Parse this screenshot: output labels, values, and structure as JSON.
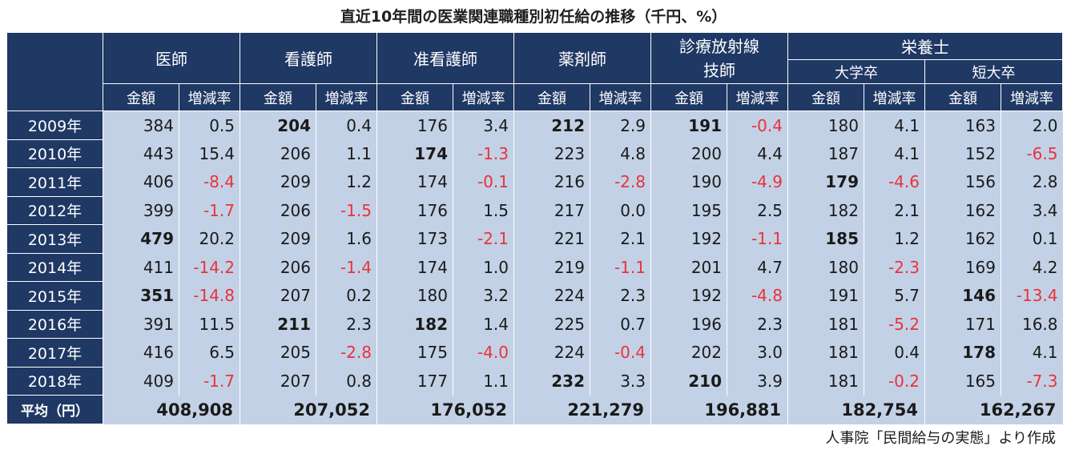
{
  "title": "直近10年間の医業関連職種別初任給の推移（千円、%）",
  "source": "人事院「民間給与の実態」より作成",
  "groups": {
    "doctor": "医師",
    "nurse": "看護師",
    "assoc_nurse": "准看護師",
    "pharmacist": "薬剤師",
    "radiology": "診療放射線技師",
    "dietitian": "栄養士",
    "dietitian_univ": "大学卒",
    "dietitian_jc": "短大卒"
  },
  "radiology_line1": "診療放射線",
  "radiology_line2": "技師",
  "sub_amount": "金額",
  "sub_rate": "増減率",
  "avg_label": "平均（円）",
  "colors": {
    "header_bg": "#1f3864",
    "cell_bg": "#c3d1e6",
    "negative": "#e8333a"
  },
  "chart_data": {
    "type": "table",
    "title": "直近10年間の医業関連職種別初任給の推移（千円、%）",
    "columns": [
      "医師",
      "看護師",
      "准看護師",
      "薬剤師",
      "診療放射線技師",
      "栄養士 大学卒",
      "栄養士 短大卒"
    ],
    "rows": [
      {
        "year": "2009年",
        "cells": [
          [
            "384",
            "0.5"
          ],
          [
            "204",
            "0.4"
          ],
          [
            "176",
            "3.4"
          ],
          [
            "212",
            "2.9"
          ],
          [
            "191",
            "-0.4"
          ],
          [
            "180",
            "4.1"
          ],
          [
            "163",
            "2.0"
          ]
        ],
        "bold": [
          false,
          true,
          false,
          true,
          true,
          false,
          false
        ]
      },
      {
        "year": "2010年",
        "cells": [
          [
            "443",
            "15.4"
          ],
          [
            "206",
            "1.1"
          ],
          [
            "174",
            "-1.3"
          ],
          [
            "223",
            "4.8"
          ],
          [
            "200",
            "4.4"
          ],
          [
            "187",
            "4.1"
          ],
          [
            "152",
            "-6.5"
          ]
        ],
        "bold": [
          false,
          false,
          true,
          false,
          false,
          false,
          false
        ]
      },
      {
        "year": "2011年",
        "cells": [
          [
            "406",
            "-8.4"
          ],
          [
            "209",
            "1.2"
          ],
          [
            "174",
            "-0.1"
          ],
          [
            "216",
            "-2.8"
          ],
          [
            "190",
            "-4.9"
          ],
          [
            "179",
            "-4.6"
          ],
          [
            "156",
            "2.8"
          ]
        ],
        "bold": [
          false,
          false,
          false,
          false,
          false,
          true,
          false
        ]
      },
      {
        "year": "2012年",
        "cells": [
          [
            "399",
            "-1.7"
          ],
          [
            "206",
            "-1.5"
          ],
          [
            "176",
            "1.5"
          ],
          [
            "217",
            "0.0"
          ],
          [
            "195",
            "2.5"
          ],
          [
            "182",
            "2.1"
          ],
          [
            "162",
            "3.4"
          ]
        ],
        "bold": [
          false,
          false,
          false,
          false,
          false,
          false,
          false
        ]
      },
      {
        "year": "2013年",
        "cells": [
          [
            "479",
            "20.2"
          ],
          [
            "209",
            "1.6"
          ],
          [
            "173",
            "-2.1"
          ],
          [
            "221",
            "2.1"
          ],
          [
            "192",
            "-1.1"
          ],
          [
            "185",
            "1.2"
          ],
          [
            "162",
            "0.1"
          ]
        ],
        "bold": [
          true,
          false,
          false,
          false,
          false,
          true,
          false
        ]
      },
      {
        "year": "2014年",
        "cells": [
          [
            "411",
            "-14.2"
          ],
          [
            "206",
            "-1.4"
          ],
          [
            "174",
            "1.0"
          ],
          [
            "219",
            "-1.1"
          ],
          [
            "201",
            "4.7"
          ],
          [
            "180",
            "-2.3"
          ],
          [
            "169",
            "4.2"
          ]
        ],
        "bold": [
          false,
          false,
          false,
          false,
          false,
          false,
          false
        ]
      },
      {
        "year": "2015年",
        "cells": [
          [
            "351",
            "-14.8"
          ],
          [
            "207",
            "0.2"
          ],
          [
            "180",
            "3.2"
          ],
          [
            "224",
            "2.3"
          ],
          [
            "192",
            "-4.8"
          ],
          [
            "191",
            "5.7"
          ],
          [
            "146",
            "-13.4"
          ]
        ],
        "bold": [
          true,
          false,
          false,
          false,
          false,
          false,
          true
        ]
      },
      {
        "year": "2016年",
        "cells": [
          [
            "391",
            "11.5"
          ],
          [
            "211",
            "2.3"
          ],
          [
            "182",
            "1.4"
          ],
          [
            "225",
            "0.7"
          ],
          [
            "196",
            "2.3"
          ],
          [
            "181",
            "-5.2"
          ],
          [
            "171",
            "16.8"
          ]
        ],
        "bold": [
          false,
          true,
          true,
          false,
          false,
          false,
          false
        ]
      },
      {
        "year": "2017年",
        "cells": [
          [
            "416",
            "6.5"
          ],
          [
            "205",
            "-2.8"
          ],
          [
            "175",
            "-4.0"
          ],
          [
            "224",
            "-0.4"
          ],
          [
            "202",
            "3.0"
          ],
          [
            "181",
            "0.4"
          ],
          [
            "178",
            "4.1"
          ]
        ],
        "bold": [
          false,
          false,
          false,
          false,
          false,
          false,
          true
        ]
      },
      {
        "year": "2018年",
        "cells": [
          [
            "409",
            "-1.7"
          ],
          [
            "207",
            "0.8"
          ],
          [
            "177",
            "1.1"
          ],
          [
            "232",
            "3.3"
          ],
          [
            "210",
            "3.9"
          ],
          [
            "181",
            "-0.2"
          ],
          [
            "165",
            "-7.3"
          ]
        ],
        "bold": [
          false,
          false,
          false,
          true,
          true,
          false,
          false
        ]
      }
    ],
    "averages": [
      "408,908",
      "207,052",
      "176,052",
      "221,279",
      "196,881",
      "182,754",
      "162,267"
    ]
  }
}
